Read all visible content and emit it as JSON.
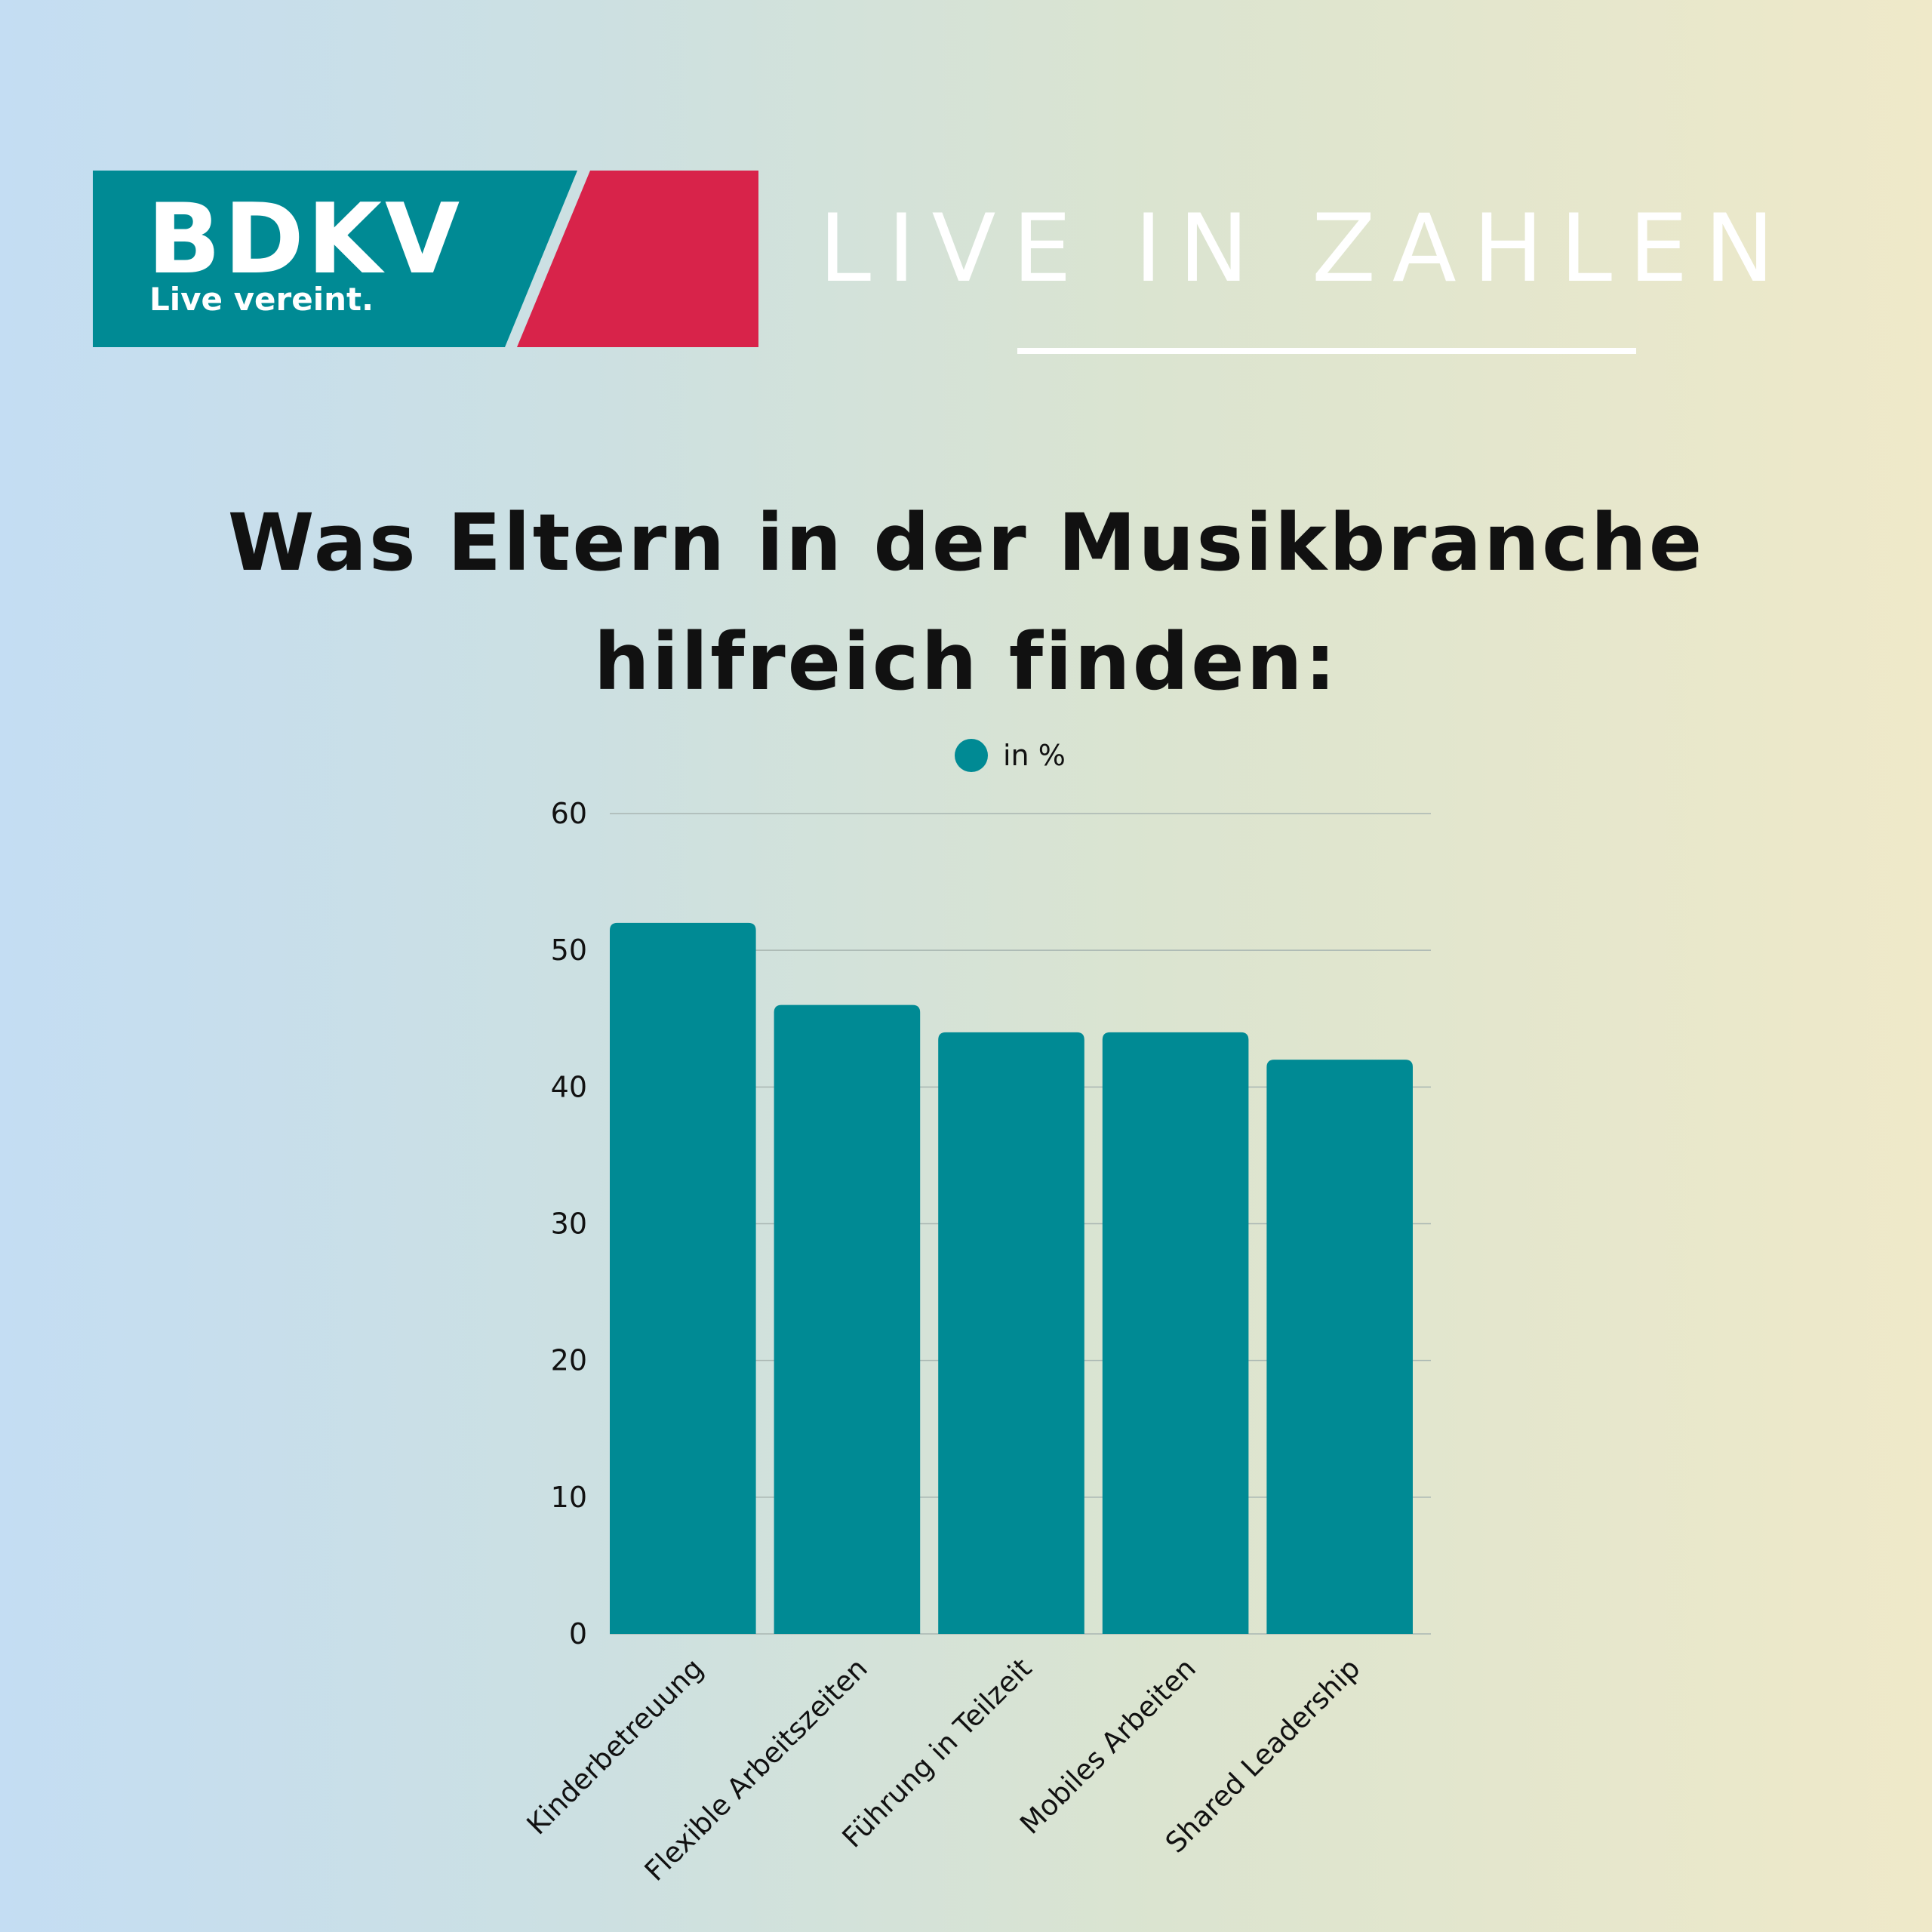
{
  "logo": {
    "name": "BDKV",
    "tagline": "Live vereint."
  },
  "header": {
    "title": "LIVE IN ZAHLEN"
  },
  "colors": {
    "teal": "#008a94",
    "red": "#d8234a",
    "white": "#ffffff"
  },
  "chart_data": {
    "type": "bar",
    "title": "Was Eltern in der Musikbranche hilfreich finden:",
    "title_lines": [
      "Was Eltern in der Musikbranche",
      "hilfreich finden:"
    ],
    "legend": "in %",
    "series": [
      {
        "name": "in %",
        "values": [
          52,
          46,
          44,
          44,
          42
        ]
      }
    ],
    "categories": [
      "Kinderbetreuung",
      "Flexible Arbeitszeiten",
      "Führung in Teilzeit",
      "Mobiles Arbeiten",
      "Shared Leadership"
    ],
    "ylim": [
      0,
      60
    ],
    "yticks": [
      "0",
      "10",
      "20",
      "30",
      "40",
      "50",
      "60"
    ],
    "grid": true,
    "legend_position": "top-center"
  }
}
